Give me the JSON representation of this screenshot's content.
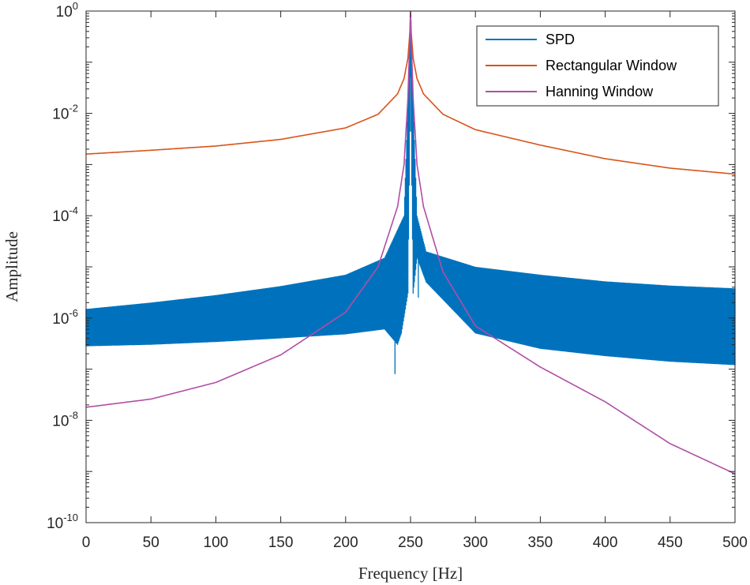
{
  "chart_data": {
    "type": "line",
    "title": "",
    "xlabel": "Frequency [Hz]",
    "ylabel": "Amplitude",
    "xlim": [
      0,
      500
    ],
    "ylim": [
      1e-10,
      1
    ],
    "yscale": "log",
    "x_ticks": [
      "0",
      "50",
      "100",
      "150",
      "200",
      "250",
      "300",
      "350",
      "400",
      "450",
      "500"
    ],
    "y_ticks": [
      {
        "base": "10",
        "exp": "0"
      },
      {
        "base": "10",
        "exp": "-2"
      },
      {
        "base": "10",
        "exp": "-4"
      },
      {
        "base": "10",
        "exp": "-6"
      },
      {
        "base": "10",
        "exp": "-8"
      },
      {
        "base": "10",
        "exp": "-10"
      }
    ],
    "legend_position": "top-right",
    "series": [
      {
        "name": "SPD",
        "color": "#0072BD",
        "style": "dense-oscillation-band",
        "upper": [
          [
            0,
            1.5e-06
          ],
          [
            50,
            2e-06
          ],
          [
            100,
            2.8e-06
          ],
          [
            150,
            4.2e-06
          ],
          [
            200,
            7e-06
          ],
          [
            230,
            1.5e-05
          ],
          [
            245,
            0.0001
          ],
          [
            250,
            0.5
          ],
          [
            255,
            0.0001
          ],
          [
            262,
            2e-05
          ],
          [
            300,
            1e-05
          ],
          [
            350,
            7e-06
          ],
          [
            400,
            5.2e-06
          ],
          [
            450,
            4.3e-06
          ],
          [
            500,
            3.8e-06
          ]
        ],
        "lower": [
          [
            0,
            2.8e-07
          ],
          [
            50,
            3e-07
          ],
          [
            100,
            3.4e-07
          ],
          [
            150,
            4e-07
          ],
          [
            200,
            4.8e-07
          ],
          [
            230,
            6e-07
          ],
          [
            240,
            3e-07
          ],
          [
            243,
            5e-07
          ],
          [
            248,
            3e-06
          ],
          [
            250,
            0.05
          ],
          [
            252,
            3e-06
          ],
          [
            255,
            1.5e-05
          ],
          [
            262,
            5e-06
          ],
          [
            300,
            5e-07
          ],
          [
            350,
            2.5e-07
          ],
          [
            400,
            1.8e-07
          ],
          [
            450,
            1.4e-07
          ],
          [
            500,
            1.2e-07
          ]
        ],
        "spikes": [
          [
            238,
            8e-08
          ],
          [
            247,
            0.00015
          ],
          [
            253,
            5e-06
          ],
          [
            256,
            2.5e-06
          ]
        ]
      },
      {
        "name": "Rectangular Window",
        "color": "#D95319",
        "x": [
          0,
          50,
          100,
          150,
          200,
          225,
          240,
          245,
          248,
          249.5,
          250,
          250.5,
          252,
          255,
          260,
          275,
          300,
          350,
          400,
          450,
          500
        ],
        "y": [
          0.0016,
          0.0019,
          0.0023,
          0.0031,
          0.0052,
          0.0096,
          0.024,
          0.048,
          0.12,
          0.4,
          1.0,
          0.4,
          0.12,
          0.048,
          0.024,
          0.0096,
          0.0048,
          0.0024,
          0.0013,
          0.00085,
          0.00065
        ]
      },
      {
        "name": "Hanning Window",
        "color": "#B04EA5",
        "x": [
          0,
          50,
          100,
          150,
          200,
          225,
          240,
          245,
          248,
          250,
          252,
          255,
          260,
          275,
          300,
          350,
          400,
          450,
          500
        ],
        "y": [
          1.8e-08,
          2.6e-08,
          5.5e-08,
          1.9e-07,
          1.3e-06,
          1e-05,
          0.00015,
          0.001,
          0.02,
          0.9,
          0.02,
          0.001,
          0.00015,
          8e-06,
          7e-07,
          1.1e-07,
          2.3e-08,
          3.5e-09,
          9e-10
        ]
      }
    ]
  }
}
